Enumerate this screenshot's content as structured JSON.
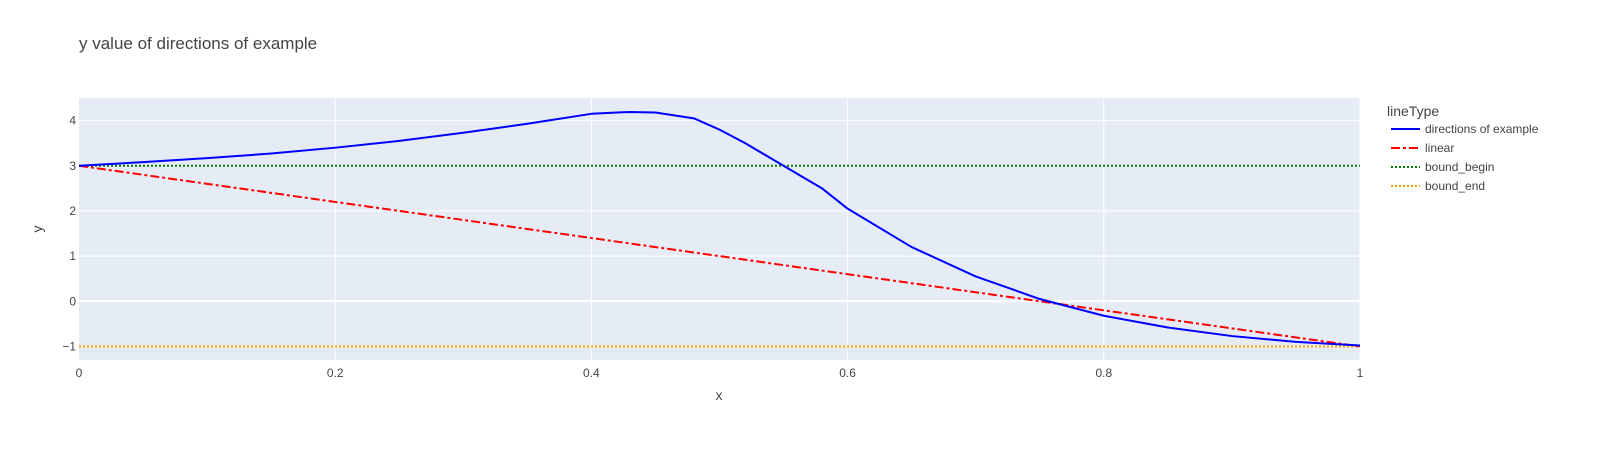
{
  "chart_data": {
    "type": "line",
    "title": "y value of directions of example",
    "xlabel": "x",
    "ylabel": "y",
    "xlim": [
      0,
      1
    ],
    "ylim": [
      -1.3,
      4.5
    ],
    "x_ticks": [
      0,
      0.2,
      0.4,
      0.6,
      0.8,
      1
    ],
    "x_tick_labels": [
      "0",
      "0.2",
      "0.4",
      "0.6",
      "0.8",
      "1"
    ],
    "y_ticks": [
      -1,
      0,
      1,
      2,
      3,
      4
    ],
    "y_tick_labels": [
      "−1",
      "0",
      "1",
      "2",
      "3",
      "4"
    ],
    "grid": true,
    "legend": {
      "title": "lineType",
      "placement": "right"
    },
    "series": [
      {
        "name": "directions of example",
        "color": "#0000ff",
        "dash": "solid",
        "x": [
          0,
          0.05,
          0.1,
          0.15,
          0.2,
          0.25,
          0.3,
          0.35,
          0.4,
          0.42,
          0.43,
          0.45,
          0.48,
          0.5,
          0.52,
          0.55,
          0.58,
          0.6,
          0.65,
          0.7,
          0.75,
          0.8,
          0.85,
          0.9,
          0.95,
          1
        ],
        "y": [
          3.0,
          3.08,
          3.17,
          3.27,
          3.4,
          3.55,
          3.73,
          3.93,
          4.15,
          4.18,
          4.19,
          4.18,
          4.05,
          3.8,
          3.5,
          3.0,
          2.5,
          2.05,
          1.2,
          0.55,
          0.05,
          -0.32,
          -0.58,
          -0.77,
          -0.9,
          -0.98
        ]
      },
      {
        "name": "linear",
        "color": "#ff0000",
        "dash": "dashdot",
        "x": [
          0,
          1
        ],
        "y": [
          3,
          -1
        ]
      },
      {
        "name": "bound_begin",
        "color": "#008000",
        "dash": "dot",
        "x": [
          0,
          1
        ],
        "y": [
          3,
          3
        ]
      },
      {
        "name": "bound_end",
        "color": "#ffa500",
        "dash": "dot",
        "x": [
          0,
          1
        ],
        "y": [
          -1,
          -1
        ]
      }
    ]
  }
}
